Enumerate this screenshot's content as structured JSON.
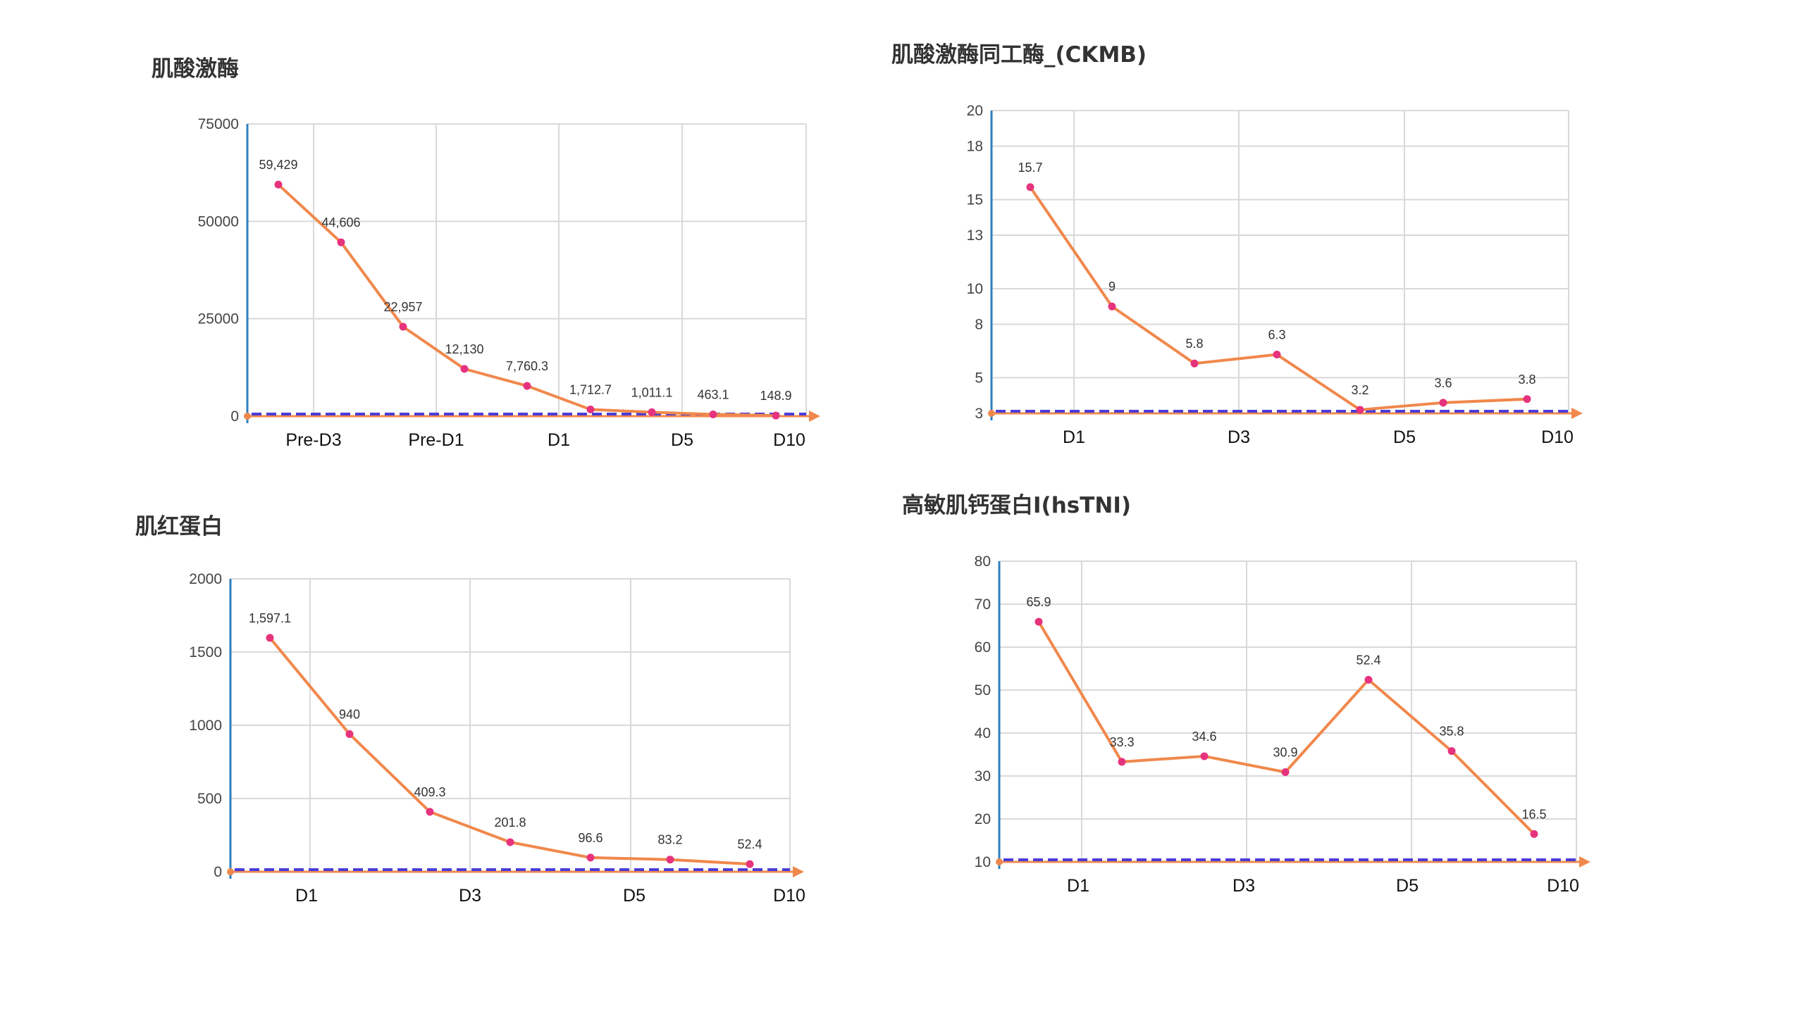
{
  "chart_data": [
    {
      "type": "line",
      "title": "肌酸激酶",
      "categories": [
        "Pre-D3",
        "Pre-D1",
        "D1",
        "D5",
        "D10"
      ],
      "ylim": [
        0,
        75000
      ],
      "yticks": [
        "0",
        "25000",
        "50000",
        "75000"
      ],
      "values": [
        59429,
        44606,
        22957,
        12130,
        7760.3,
        1712.7,
        1011.1,
        463.1,
        148.9
      ],
      "labels": [
        "59,429",
        "44,606",
        "22,957",
        "12,130",
        "7,760.3",
        "1,712.7",
        "1,011.1",
        "463.1",
        "148.9"
      ],
      "grid": true,
      "colors": {
        "line": "#f0884c",
        "points": "#e6337e",
        "baseline": "#4b3cd8",
        "yaxis": "#2e7fc0"
      }
    },
    {
      "type": "line",
      "title": "肌酸激酶同工酶_(CKMB)",
      "categories": [
        "D1",
        "D3",
        "D5",
        "D10"
      ],
      "ylim": [
        3,
        20
      ],
      "yticks": [
        "3",
        "5",
        "8",
        "10",
        "13",
        "15",
        "18",
        "20"
      ],
      "values": [
        15.7,
        9,
        5.8,
        6.3,
        3.2,
        3.6,
        3.8
      ],
      "labels": [
        "15.7",
        "9",
        "5.8",
        "6.3",
        "3.2",
        "3.6",
        "3.8"
      ],
      "grid": true,
      "colors": {
        "line": "#f0884c",
        "points": "#e6337e",
        "baseline": "#4b3cd8",
        "yaxis": "#2e7fc0"
      }
    },
    {
      "type": "line",
      "title": "肌红蛋白",
      "categories": [
        "D1",
        "D3",
        "D5",
        "D10"
      ],
      "ylim": [
        0,
        2000
      ],
      "yticks": [
        "0",
        "500",
        "1000",
        "1500",
        "2000"
      ],
      "values": [
        1597.1,
        940,
        409.3,
        201.8,
        96.6,
        83.2,
        52.4
      ],
      "labels": [
        "1,597.1",
        "940",
        "409.3",
        "201.8",
        "96.6",
        "83.2",
        "52.4"
      ],
      "grid": true,
      "colors": {
        "line": "#f0884c",
        "points": "#e6337e",
        "baseline": "#4b3cd8",
        "yaxis": "#2e7fc0"
      }
    },
    {
      "type": "line",
      "title": "高敏肌钙蛋白I(hsTNI)",
      "categories": [
        "D1",
        "D3",
        "D5",
        "D10"
      ],
      "ylim": [
        10,
        80
      ],
      "yticks": [
        "10",
        "20",
        "30",
        "40",
        "50",
        "60",
        "70",
        "80"
      ],
      "values": [
        65.9,
        33.3,
        34.6,
        30.9,
        52.4,
        35.8,
        16.5
      ],
      "labels": [
        "65.9",
        "33.3",
        "34.6",
        "30.9",
        "52.4",
        "35.8",
        "16.5"
      ],
      "grid": true,
      "colors": {
        "line": "#f0884c",
        "points": "#e6337e",
        "baseline": "#4b3cd8",
        "yaxis": "#2e7fc0"
      }
    }
  ]
}
